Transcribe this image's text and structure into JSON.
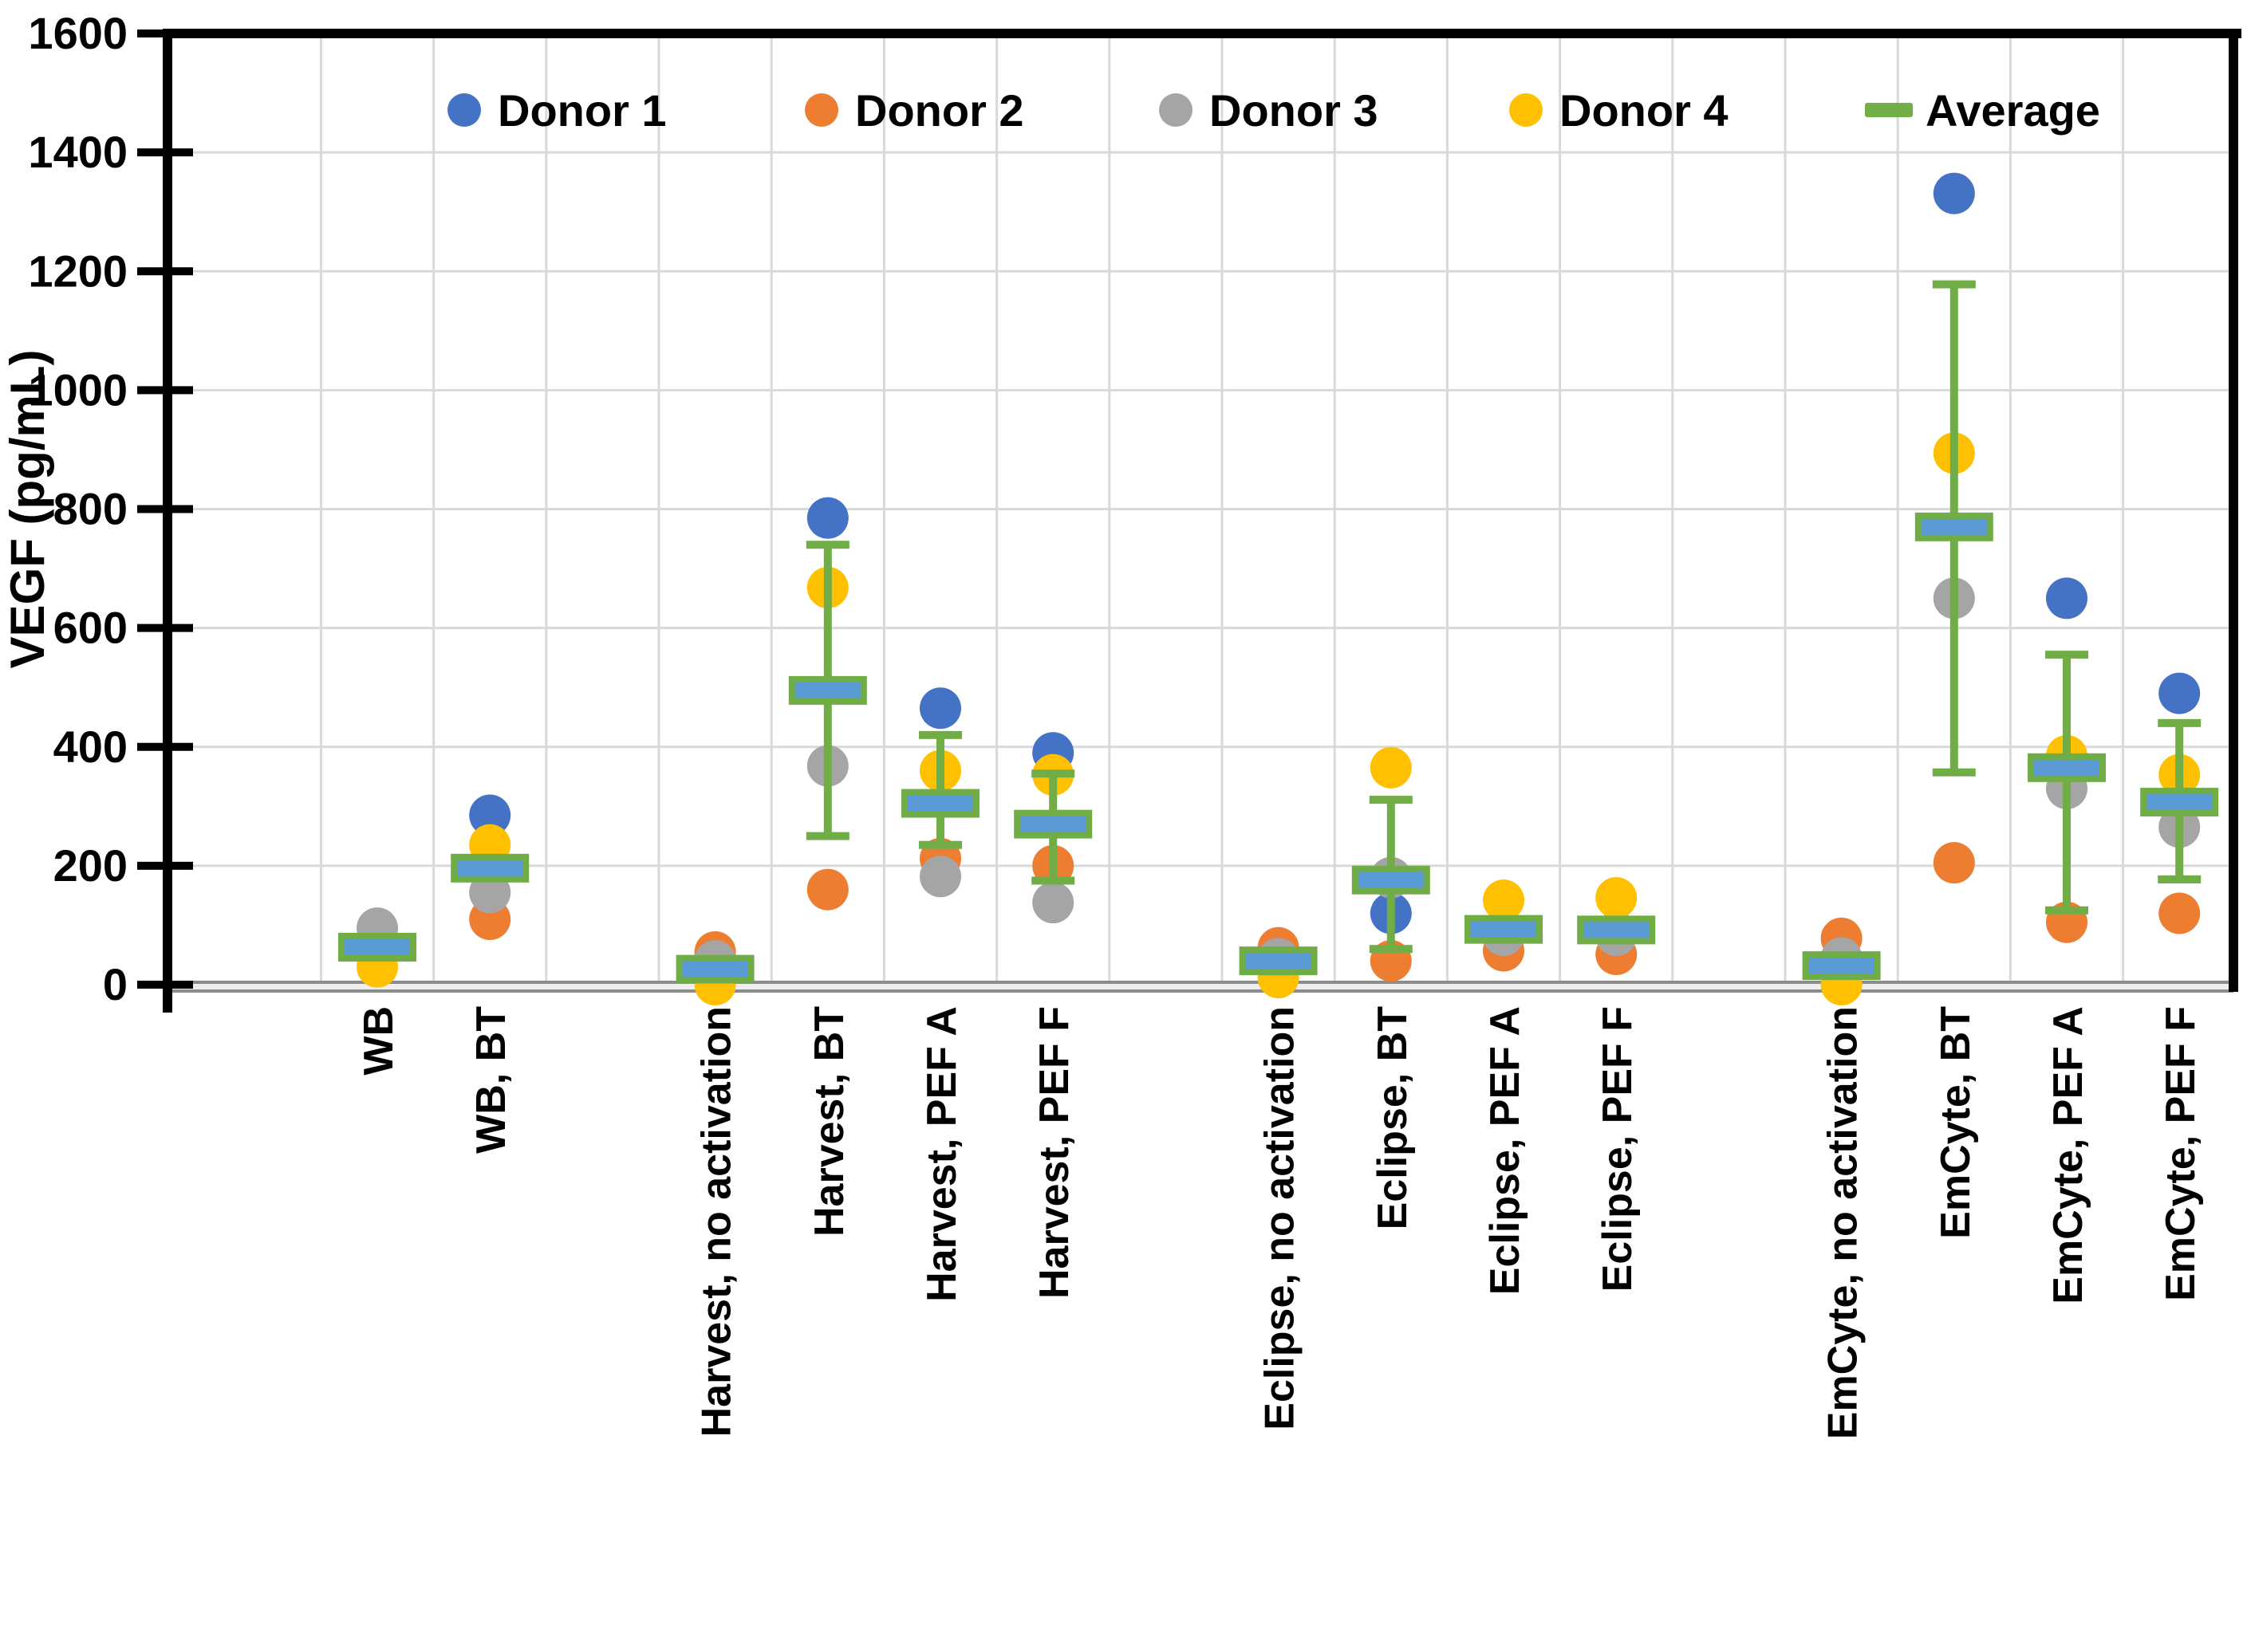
{
  "chart_data": {
    "type": "scatter",
    "title": "",
    "xlabel": "",
    "ylabel": "VEGF (pg/mL)",
    "ylim": [
      0,
      1600
    ],
    "ytick_step": 200,
    "ytick_labels": [
      "0",
      "200",
      "400",
      "600",
      "800",
      "1000",
      "1200",
      "1400",
      "1600"
    ],
    "grid": true,
    "legend_position": "top-inside",
    "categories": [
      "WB",
      "WB, BT",
      "Harvest, no activation",
      "Harvest, BT",
      "Harvest, PEF A",
      "Harvest, PEF F",
      "Eclipse, no activation",
      "Eclipse, BT",
      "Eclipse, PEF A",
      "Eclipse, PEF F",
      "EmCyte, no activation",
      "EmCyte, BT",
      "EmCyte, PEF A",
      "EmCyte, PEF F"
    ],
    "slots": [
      0,
      1,
      3,
      4,
      5,
      6,
      8,
      9,
      10,
      11,
      13,
      14,
      15,
      16
    ],
    "total_slots": 17,
    "series": [
      {
        "name": "Donor 1",
        "marker": "circle",
        "color": "#4472C4",
        "values": [
          62,
          285,
          10,
          785,
          465,
          390,
          42,
          120,
          90,
          88,
          15,
          1331,
          650,
          490
        ]
      },
      {
        "name": "Donor 2",
        "marker": "circle",
        "color": "#ED7D31",
        "values": [
          65,
          110,
          55,
          160,
          212,
          200,
          62,
          40,
          57,
          51,
          78,
          205,
          105,
          120
        ]
      },
      {
        "name": "Donor 3",
        "marker": "circle",
        "color": "#A5A5A5",
        "values": [
          95,
          155,
          40,
          368,
          182,
          138,
          44,
          180,
          83,
          83,
          45,
          650,
          330,
          265
        ]
      },
      {
        "name": "Donor 4",
        "marker": "circle",
        "color": "#FFC000",
        "values": [
          30,
          235,
          0,
          668,
          360,
          353,
          12,
          365,
          142,
          146,
          0,
          894,
          385,
          353
        ]
      },
      {
        "name": "Average",
        "marker": "dash",
        "color": "#70AD47",
        "dash_fill": "#5B9BD5",
        "values": [
          63,
          196,
          26,
          495,
          305,
          270,
          40,
          176,
          93,
          92,
          32,
          770,
          365,
          307
        ],
        "error_high": [
          null,
          null,
          null,
          740,
          420,
          355,
          null,
          311,
          null,
          null,
          null,
          1178,
          555,
          440
        ],
        "error_low": [
          null,
          null,
          null,
          250,
          235,
          175,
          null,
          60,
          null,
          null,
          null,
          357,
          125,
          177
        ]
      }
    ],
    "legend": [
      {
        "label": "Donor 1",
        "marker": "circle",
        "color": "#4472C4"
      },
      {
        "label": "Donor 2",
        "marker": "circle",
        "color": "#ED7D31"
      },
      {
        "label": "Donor 3",
        "marker": "circle",
        "color": "#A5A5A5"
      },
      {
        "label": "Donor 4",
        "marker": "circle",
        "color": "#FFC000"
      },
      {
        "label": "Average",
        "marker": "dash",
        "color": "#70AD47"
      }
    ],
    "colors": {
      "grid": "#D9D9D9",
      "axis": "#000000",
      "baseline_edge": "#8C8C8C",
      "baseline_fill": "#EFEFEF",
      "error_bar": "#70AD47",
      "avg_border": "#70AD47",
      "avg_fill": "#5B9BD5",
      "background": "#FFFFFF"
    }
  }
}
